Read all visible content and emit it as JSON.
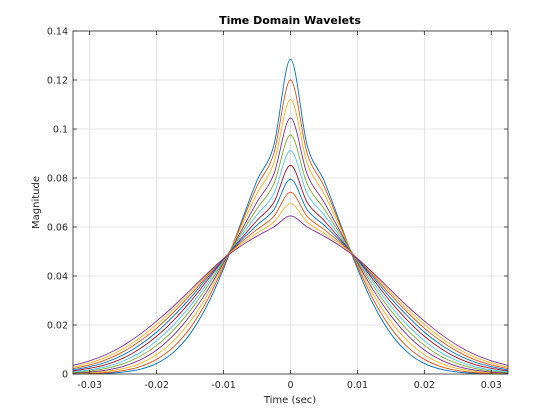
{
  "chart_data": {
    "type": "line",
    "title": "Time Domain Wavelets",
    "xlabel": "Time (sec)",
    "ylabel": "Magnitude",
    "xlim": [
      -0.0325,
      0.0325
    ],
    "ylim": [
      0,
      0.14
    ],
    "xticks": [
      -0.03,
      -0.02,
      -0.01,
      0,
      0.01,
      0.02,
      0.03
    ],
    "xtick_labels": [
      "-0.03",
      "-0.02",
      "-0.01",
      "0",
      "0.01",
      "0.02",
      "0.03"
    ],
    "yticks": [
      0,
      0.02,
      0.04,
      0.06,
      0.08,
      0.1,
      0.12,
      0.14
    ],
    "ytick_labels": [
      "0",
      "0.02",
      "0.04",
      "0.06",
      "0.08",
      "0.1",
      "0.12",
      "0.14"
    ],
    "grid": true,
    "x": [
      -0.0325,
      -0.03,
      -0.0275,
      -0.025,
      -0.0225,
      -0.02,
      -0.0175,
      -0.015,
      -0.0125,
      -0.01,
      -0.0075,
      -0.005,
      -0.0025,
      0,
      0.0025,
      0.005,
      0.0075,
      0.01,
      0.0125,
      0.015,
      0.0175,
      0.02,
      0.0225,
      0.025,
      0.0275,
      0.03,
      0.0325
    ],
    "series": [
      {
        "color": "#0072BD",
        "values": [
          0.0,
          0.0001,
          0.0003,
          0.0008,
          0.0019,
          0.0043,
          0.0088,
          0.0164,
          0.0278,
          0.043,
          0.061,
          0.079,
          0.0932,
          0.1285,
          0.0932,
          0.079,
          0.061,
          0.043,
          0.0278,
          0.0164,
          0.0088,
          0.0043,
          0.0019,
          0.0008,
          0.0003,
          0.0001,
          0.0
        ]
      },
      {
        "color": "#D95319",
        "values": [
          0.0001,
          0.0002,
          0.0006,
          0.0014,
          0.003,
          0.006,
          0.011,
          0.0188,
          0.0298,
          0.044,
          0.0603,
          0.0767,
          0.09,
          0.12,
          0.09,
          0.0767,
          0.0603,
          0.044,
          0.0298,
          0.0188,
          0.011,
          0.006,
          0.003,
          0.0014,
          0.0006,
          0.0002,
          0.0001
        ]
      },
      {
        "color": "#EDB120",
        "values": [
          0.0002,
          0.0005,
          0.0011,
          0.0022,
          0.0043,
          0.0079,
          0.0135,
          0.0214,
          0.0319,
          0.0448,
          0.0592,
          0.0737,
          0.086,
          0.112,
          0.086,
          0.0737,
          0.0592,
          0.0448,
          0.0319,
          0.0214,
          0.0135,
          0.0079,
          0.0043,
          0.0022,
          0.0011,
          0.0005,
          0.0002
        ]
      },
      {
        "color": "#7E2F8E",
        "values": [
          0.0004,
          0.0008,
          0.0016,
          0.0031,
          0.0057,
          0.0098,
          0.0158,
          0.0238,
          0.0337,
          0.0454,
          0.0578,
          0.0702,
          0.0815,
          0.1045,
          0.0815,
          0.0702,
          0.0578,
          0.0454,
          0.0337,
          0.0238,
          0.0158,
          0.0098,
          0.0057,
          0.0031,
          0.0016,
          0.0008,
          0.0004
        ]
      },
      {
        "color": "#77AC30",
        "values": [
          0.0006,
          0.0012,
          0.0023,
          0.0042,
          0.0072,
          0.0117,
          0.0179,
          0.0259,
          0.0354,
          0.046,
          0.0568,
          0.0675,
          0.0775,
          0.0975,
          0.0775,
          0.0675,
          0.0568,
          0.046,
          0.0354,
          0.0259,
          0.0179,
          0.0117,
          0.0072,
          0.0042,
          0.0023,
          0.0012,
          0.0006
        ]
      },
      {
        "color": "#4DBEEE",
        "values": [
          0.0009,
          0.0017,
          0.003,
          0.0053,
          0.0087,
          0.0136,
          0.0199,
          0.0277,
          0.0368,
          0.0465,
          0.0558,
          0.065,
          0.0735,
          0.0912,
          0.0735,
          0.065,
          0.0558,
          0.0465,
          0.0368,
          0.0277,
          0.0199,
          0.0136,
          0.0087,
          0.0053,
          0.003,
          0.0017,
          0.0009
        ]
      },
      {
        "color": "#A2142F",
        "values": [
          0.0013,
          0.0023,
          0.0039,
          0.0065,
          0.0103,
          0.0154,
          0.0218,
          0.0294,
          0.038,
          0.0468,
          0.0549,
          0.0627,
          0.07,
          0.0852,
          0.07,
          0.0627,
          0.0549,
          0.0468,
          0.038,
          0.0294,
          0.0218,
          0.0154,
          0.0103,
          0.0065,
          0.0039,
          0.0023,
          0.0013
        ]
      },
      {
        "color": "#0072BD",
        "values": [
          0.0017,
          0.003,
          0.0049,
          0.0078,
          0.0119,
          0.0171,
          0.0236,
          0.0309,
          0.039,
          0.047,
          0.0542,
          0.0608,
          0.067,
          0.0795,
          0.067,
          0.0608,
          0.0542,
          0.047,
          0.039,
          0.0309,
          0.0236,
          0.0171,
          0.0119,
          0.0078,
          0.0049,
          0.003,
          0.0017
        ]
      },
      {
        "color": "#D95319",
        "values": [
          0.0022,
          0.0037,
          0.0059,
          0.0091,
          0.0134,
          0.0187,
          0.0251,
          0.0322,
          0.0398,
          0.0472,
          0.0535,
          0.059,
          0.0643,
          0.0742,
          0.0643,
          0.059,
          0.0535,
          0.0472,
          0.0398,
          0.0322,
          0.0251,
          0.0187,
          0.0134,
          0.0091,
          0.0059,
          0.0037,
          0.0022
        ]
      },
      {
        "color": "#EDB120",
        "values": [
          0.0028,
          0.0045,
          0.0069,
          0.0103,
          0.0148,
          0.0202,
          0.0264,
          0.0333,
          0.0404,
          0.0472,
          0.0528,
          0.0575,
          0.062,
          0.0695,
          0.062,
          0.0575,
          0.0528,
          0.0472,
          0.0404,
          0.0333,
          0.0264,
          0.0202,
          0.0148,
          0.0103,
          0.0069,
          0.0045,
          0.0028
        ]
      },
      {
        "color": "#7E2F8E",
        "values": [
          0.0035,
          0.0054,
          0.008,
          0.0116,
          0.0162,
          0.0216,
          0.0276,
          0.0342,
          0.0409,
          0.0471,
          0.0521,
          0.0563,
          0.06,
          0.0645,
          0.06,
          0.0563,
          0.0521,
          0.0471,
          0.0409,
          0.0342,
          0.0276,
          0.0216,
          0.0162,
          0.0116,
          0.008,
          0.0054,
          0.0035
        ]
      }
    ]
  }
}
